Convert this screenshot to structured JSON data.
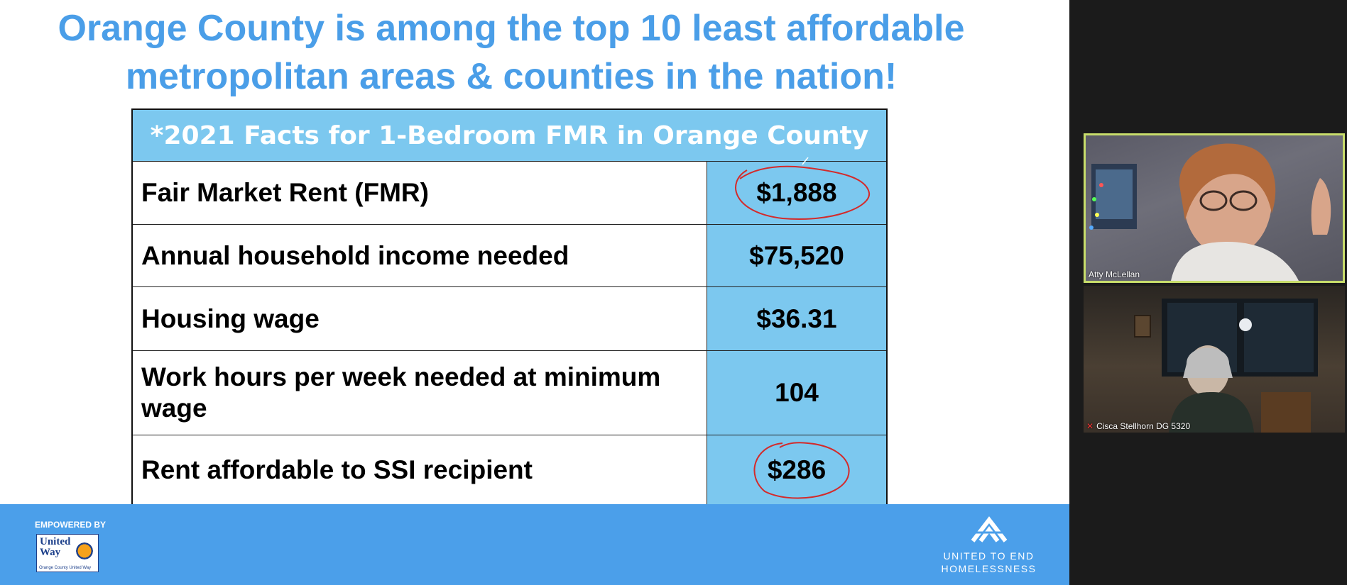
{
  "slide": {
    "title_line1": "Orange County is among the top 10 least affordable",
    "title_line2": "metropolitan areas & counties in the nation!",
    "table": {
      "header": "*2021 Facts for 1-Bedroom FMR in Orange County",
      "rows": [
        {
          "label": "Fair Market Rent (FMR)",
          "value": "$1,888",
          "circled": true
        },
        {
          "label": "Annual household income needed",
          "value": "$75,520",
          "circled": false
        },
        {
          "label": "Housing wage",
          "value": "$36.31",
          "circled": false
        },
        {
          "label": "Work hours per week needed at minimum wage",
          "value": "104",
          "circled": false
        },
        {
          "label": "Rent affordable to SSI recipient",
          "value": "$286",
          "circled": true
        }
      ]
    },
    "footer": {
      "empowered_by": "EMPOWERED BY",
      "united_way": "United Way",
      "united_way_sub": "Orange County United Way",
      "ueh_line1": "UNITED TO END",
      "ueh_line2": "HOMELESSNESS"
    }
  },
  "participants": [
    {
      "name": "Atty McLellan",
      "active_speaker": true,
      "muted": false
    },
    {
      "name": "Cisca Stellhorn DG 5320",
      "active_speaker": false,
      "muted": true
    }
  ],
  "colors": {
    "title_blue": "#4a9ee8",
    "table_blue": "#7cc8ef",
    "footer_blue": "#4b9fea",
    "annotation_red": "#d42a2a",
    "speaker_border": "#c8dd6b"
  }
}
